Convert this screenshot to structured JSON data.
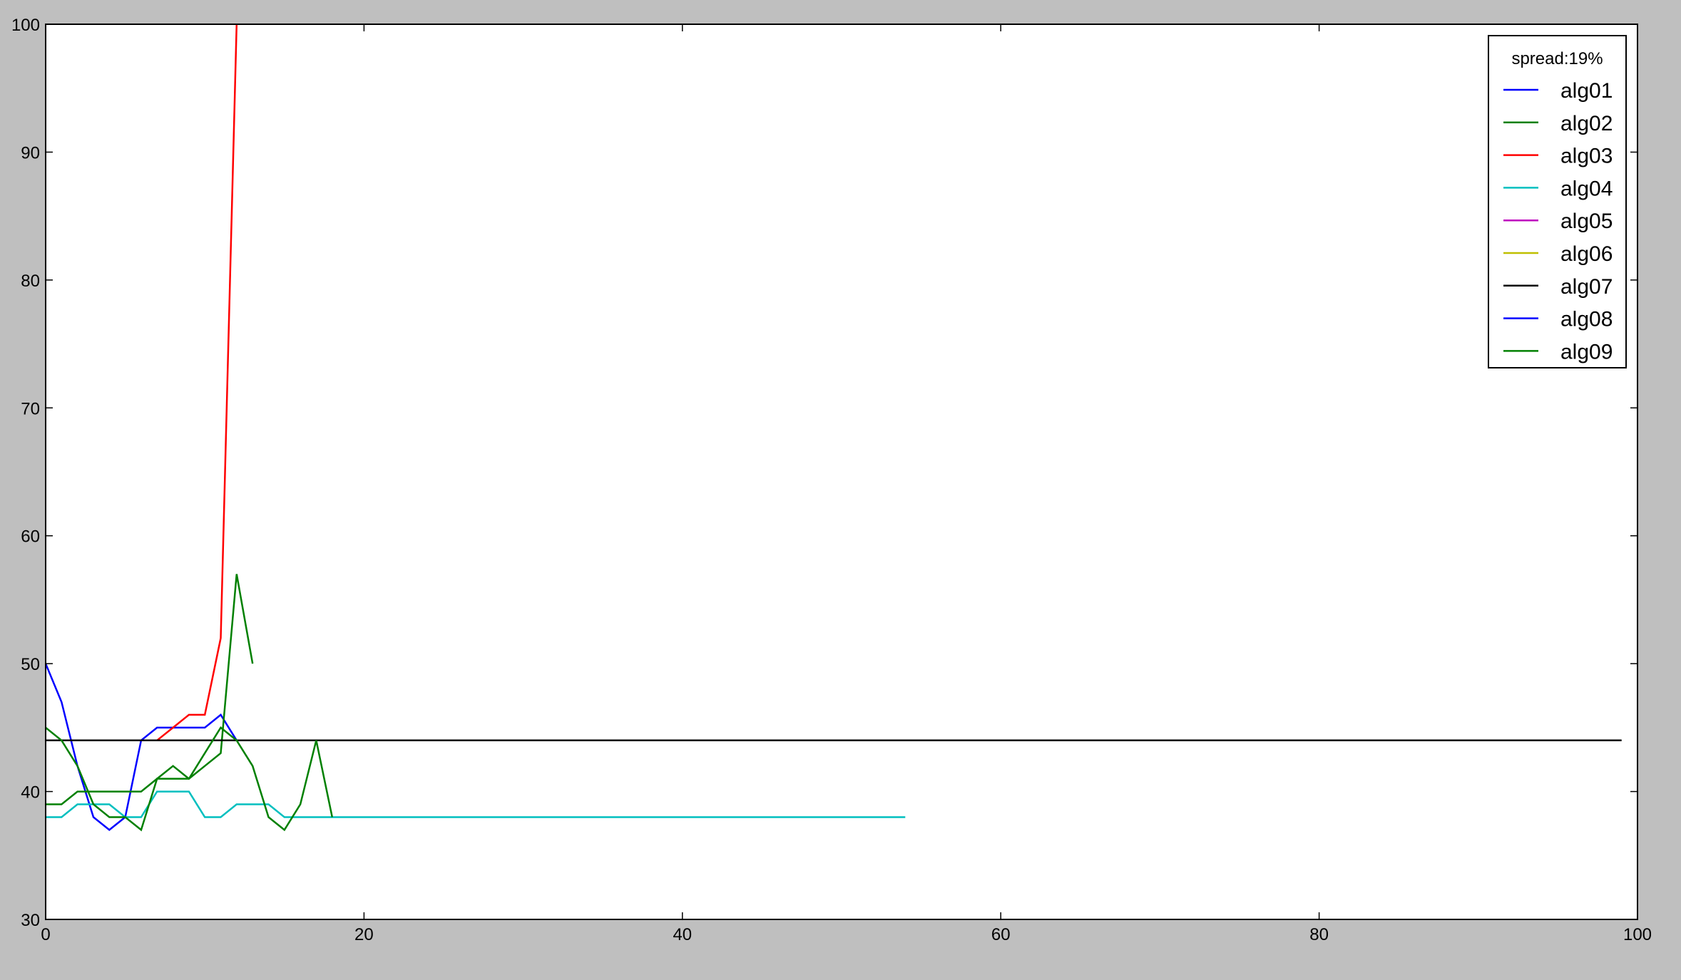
{
  "chart_data": {
    "type": "line",
    "title": "",
    "xlabel": "",
    "ylabel": "",
    "xlim": [
      0,
      100
    ],
    "ylim": [
      30,
      100
    ],
    "xticks": [
      0,
      20,
      40,
      60,
      80,
      100
    ],
    "yticks": [
      30,
      40,
      50,
      60,
      70,
      80,
      90,
      100
    ],
    "grid": false,
    "legend": {
      "title": "spread:19%",
      "placement": "top-right"
    },
    "series": [
      {
        "name": "alg01",
        "color": "#0000ff",
        "x": [
          0,
          1,
          2,
          3,
          4,
          5,
          6,
          7,
          8,
          9,
          10,
          11,
          12
        ],
        "y": [
          50,
          47,
          42,
          38,
          37,
          38,
          44,
          45,
          45,
          45,
          45,
          46,
          44
        ]
      },
      {
        "name": "alg02",
        "color": "#008000",
        "x": [
          0,
          1,
          2,
          3,
          4,
          5,
          6,
          7,
          8,
          9,
          10,
          11,
          12,
          13
        ],
        "y": [
          39,
          39,
          40,
          40,
          40,
          40,
          40,
          41,
          42,
          41,
          42,
          43,
          57,
          50
        ]
      },
      {
        "name": "alg03",
        "color": "#ff0000",
        "x": [
          0,
          1,
          2,
          3,
          4,
          5,
          6,
          7,
          8,
          9,
          10,
          11,
          12
        ],
        "y": [
          44,
          44,
          44,
          44,
          44,
          44,
          44,
          44,
          45,
          46,
          46,
          52,
          100
        ]
      },
      {
        "name": "alg04",
        "color": "#00bfbf",
        "x": [
          0,
          1,
          2,
          3,
          4,
          5,
          6,
          7,
          8,
          9,
          10,
          11,
          12,
          13,
          14,
          15,
          16,
          17,
          18,
          54
        ],
        "y": [
          38,
          38,
          39,
          39,
          39,
          38,
          38,
          40,
          40,
          40,
          38,
          38,
          39,
          39,
          39,
          38,
          38,
          38,
          38,
          38
        ]
      },
      {
        "name": "alg05",
        "color": "#bf00bf",
        "x": [],
        "y": []
      },
      {
        "name": "alg06",
        "color": "#bfbf00",
        "x": [],
        "y": []
      },
      {
        "name": "alg07",
        "color": "#000000",
        "x": [
          0,
          99
        ],
        "y": [
          44,
          44
        ]
      },
      {
        "name": "alg08",
        "color": "#0000ff",
        "x": [],
        "y": []
      },
      {
        "name": "alg09",
        "color": "#008000",
        "x": [
          0,
          1,
          2,
          3,
          4,
          5,
          6,
          7,
          8,
          9,
          10,
          11,
          12,
          13,
          14,
          15,
          16,
          17,
          18
        ],
        "y": [
          45,
          44,
          42,
          39,
          38,
          38,
          37,
          41,
          41,
          41,
          43,
          45,
          44,
          42,
          38,
          37,
          39,
          44,
          38
        ]
      }
    ]
  }
}
